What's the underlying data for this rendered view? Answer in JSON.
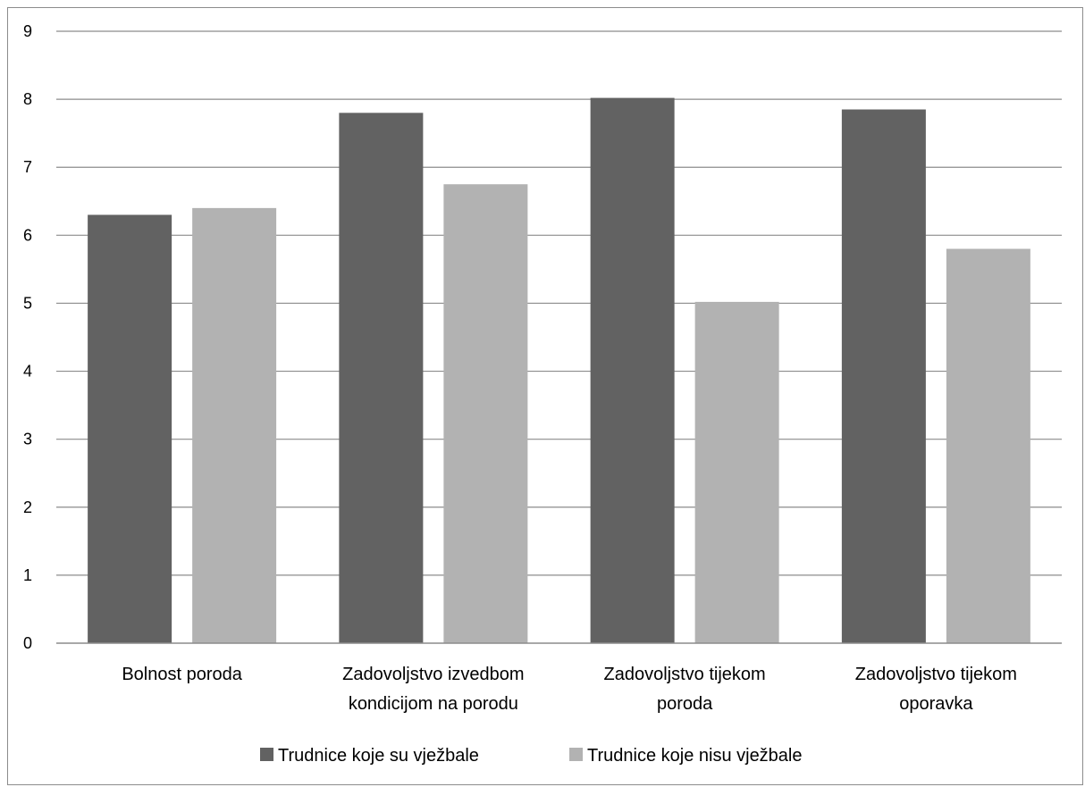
{
  "chart_data": {
    "type": "bar",
    "title": "",
    "xlabel": "",
    "ylabel": "",
    "ylim": [
      0,
      9
    ],
    "yticks": [
      0,
      1,
      2,
      3,
      4,
      5,
      6,
      7,
      8,
      9
    ],
    "grid": true,
    "legend_position": "bottom",
    "categories": [
      [
        "Bolnost poroda"
      ],
      [
        "Zadovoljstvo izvedbom",
        "kondicijom na porodu"
      ],
      [
        "Zadovoljstvo tijekom",
        "poroda"
      ],
      [
        "Zadovoljstvo tijekom",
        "oporavka"
      ]
    ],
    "series": [
      {
        "name": "Trudnice koje su vježbale",
        "color": "#626262",
        "values": [
          6.3,
          7.8,
          8.02,
          7.85
        ]
      },
      {
        "name": "Trudnice koje nisu vježbale",
        "color": "#b2b2b2",
        "values": [
          6.4,
          6.75,
          5.02,
          5.8
        ]
      }
    ]
  }
}
